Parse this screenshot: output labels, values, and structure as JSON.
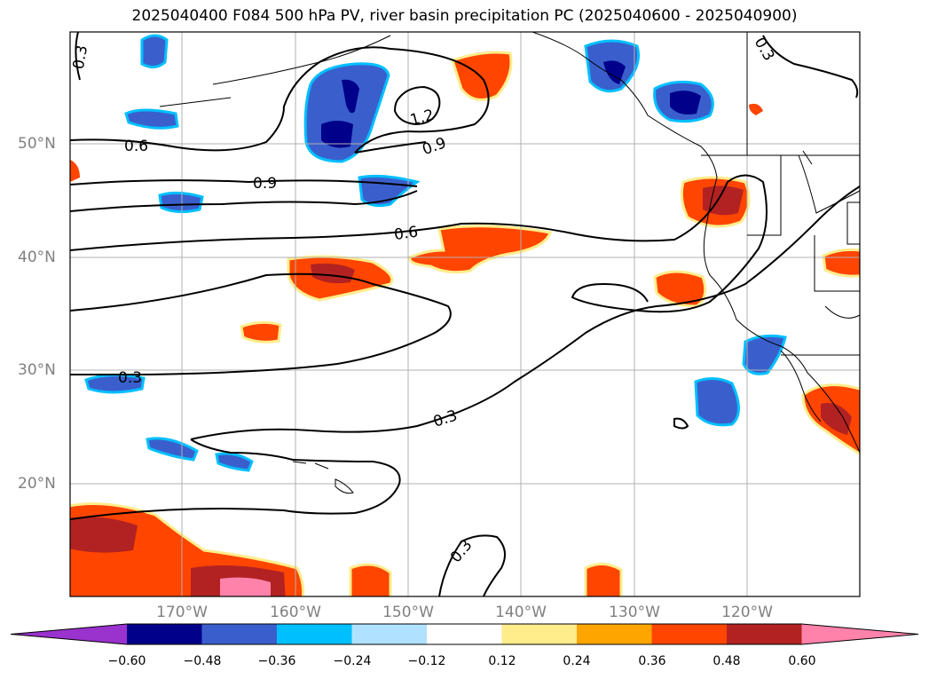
{
  "title": "2025040400 F084 500 hPa PV, river basin precipitation PC (2025040600 - 2025040900)",
  "lat_labels": [
    "50°N",
    "40°N",
    "30°N",
    "20°N"
  ],
  "lon_labels": [
    "170°W",
    "160°W",
    "150°W",
    "140°W",
    "130°W",
    "120°W"
  ],
  "contour_labels": [
    "0.3",
    "0.6",
    "0.9",
    "1.2",
    "0.9",
    "0.6",
    "0.3",
    "0.3",
    "0.3"
  ],
  "colorbar": {
    "ticks": [
      "−0.60",
      "−0.48",
      "−0.36",
      "−0.24",
      "−0.12",
      "0.12",
      "0.24",
      "0.36",
      "0.48",
      "0.60"
    ],
    "colors": [
      "#9a32cd",
      "#00008b",
      "#3a5fcd",
      "#00bfff",
      "#b0e2ff",
      "#ffffff",
      "#ffec8b",
      "#ffa500",
      "#ff4500",
      "#b22222",
      "#ff82ab"
    ]
  },
  "map_extent": {
    "lon_min": -180,
    "lon_max": -110,
    "lat_min": 10,
    "lat_max": 60
  }
}
